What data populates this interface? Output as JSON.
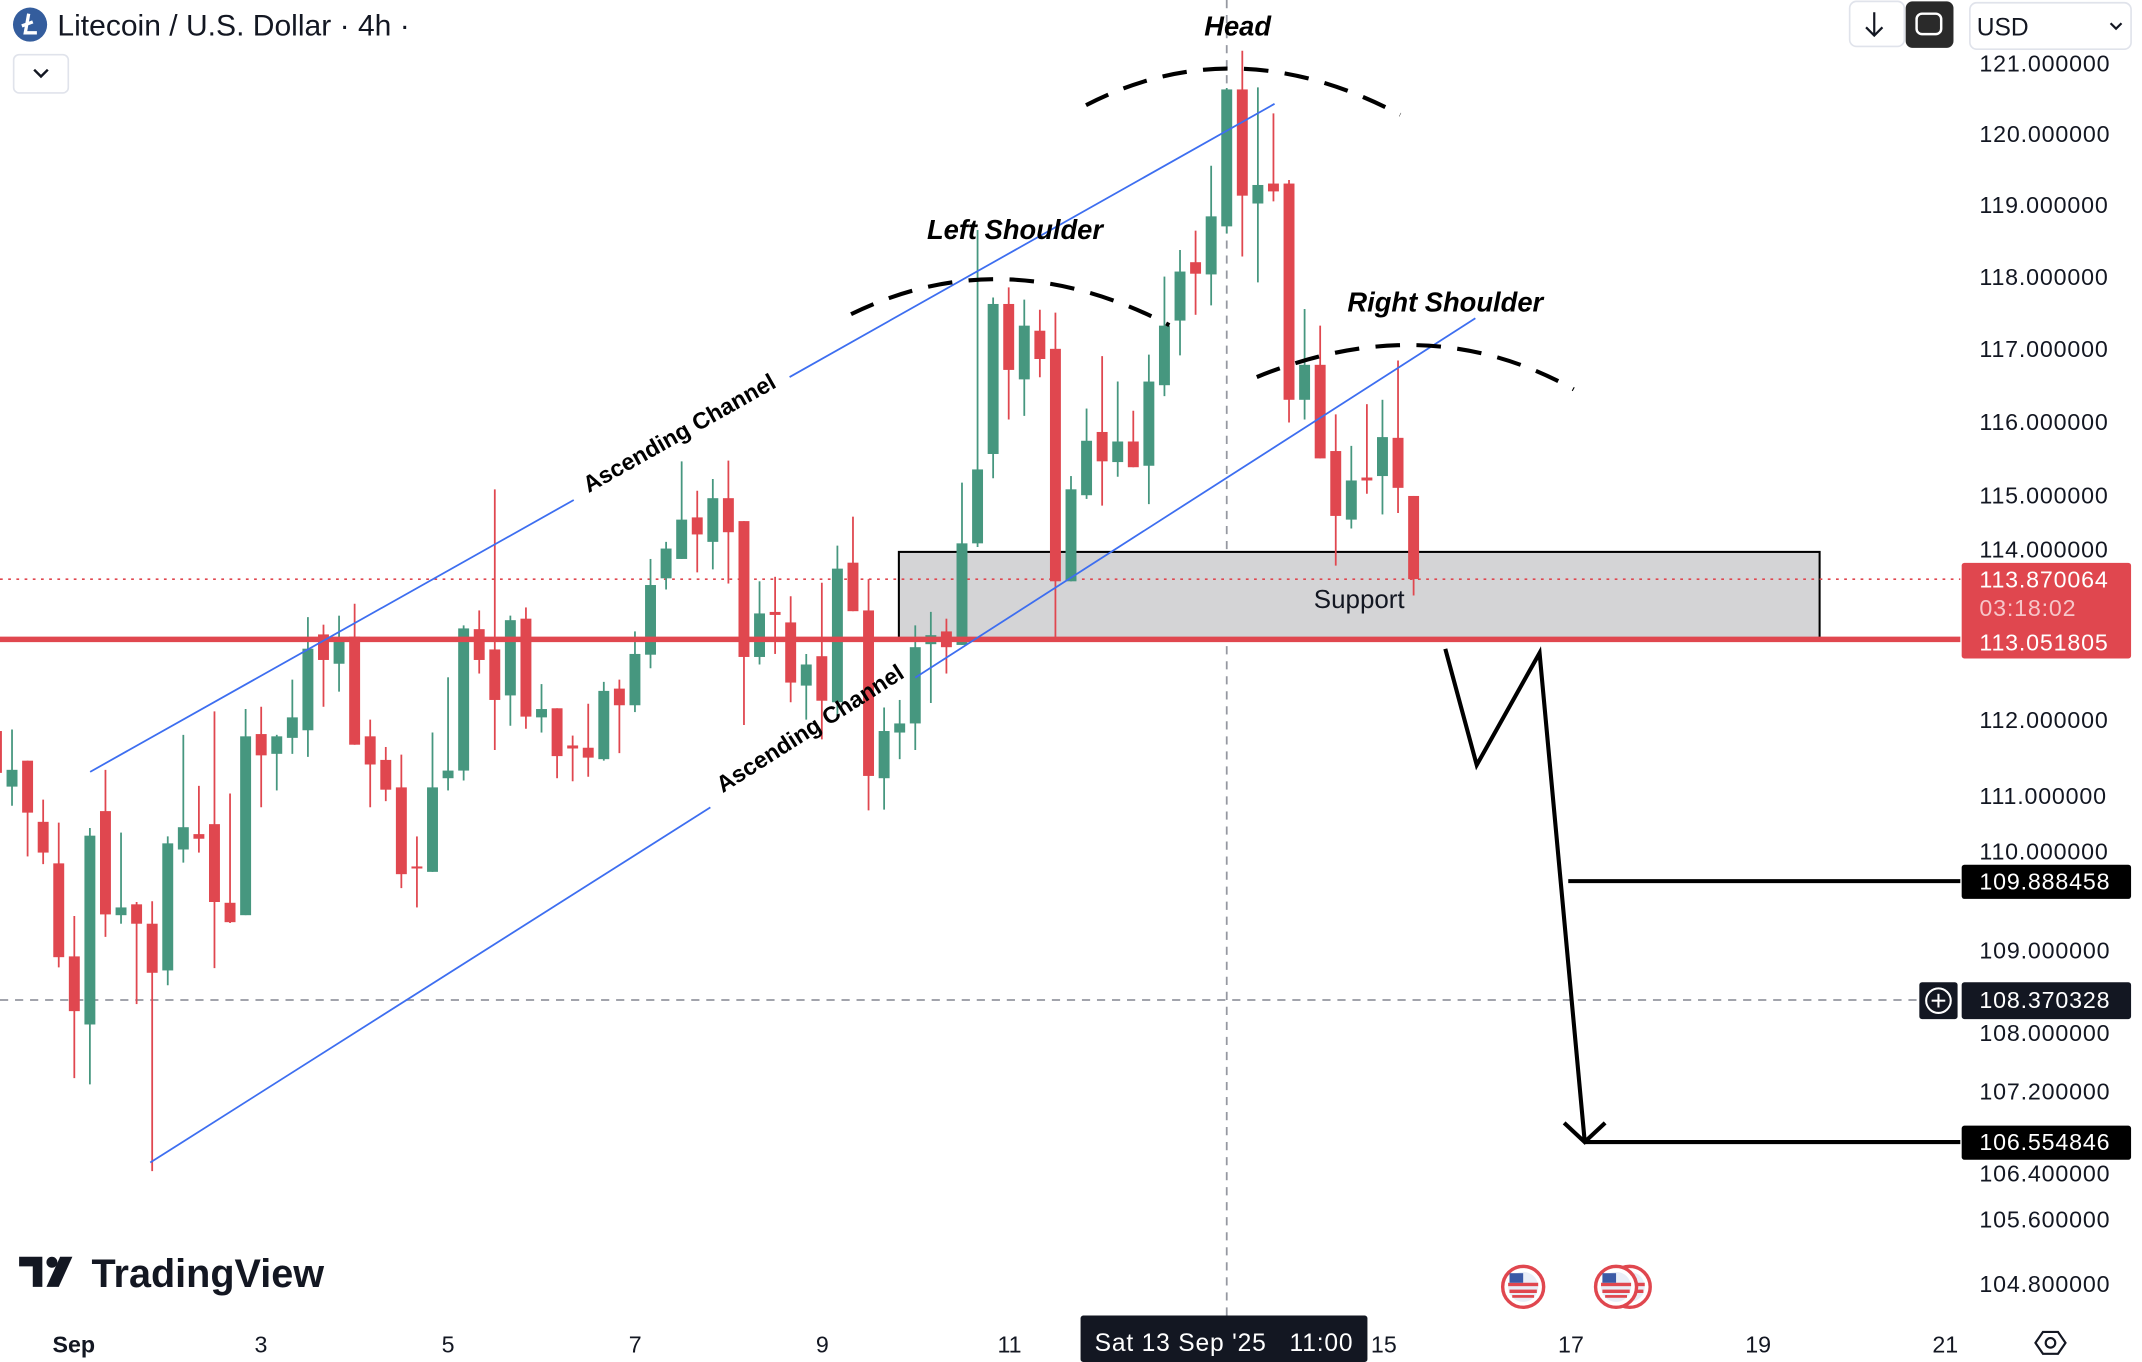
{
  "header": {
    "title": "Litecoin / U.S. Dollar · 4h ·",
    "coin_icon": "litecoin-logo-icon",
    "collapse_icon": "chevron-down-icon",
    "scroll_button_icon": "arrow-down-icon",
    "fullscreen_button_icon": "fullscreen-icon",
    "currency": "USD"
  },
  "colors": {
    "up": "#46977f",
    "down": "#e0474f",
    "channel": "#3d6ef0",
    "support_fill": "#d4d4d6",
    "price_line": "#e0474f",
    "coin": "#345d9d"
  },
  "annotations": {
    "head": "Head",
    "left_shoulder": "Left Shoulder",
    "right_shoulder": "Right Shoulder",
    "channel_upper": "Ascending Channel",
    "channel_lower": "Ascending Channel",
    "support": "Support"
  },
  "price_axis": {
    "scale": "log",
    "ticks": [
      "121.000000",
      "120.000000",
      "119.000000",
      "118.000000",
      "117.000000",
      "116.000000",
      "115.000000",
      "114.000000",
      "112.000000",
      "111.000000",
      "110.000000",
      "109.000000",
      "108.000000",
      "107.200000",
      "106.400000",
      "105.600000",
      "104.800000"
    ],
    "current_price": "113.870064",
    "countdown": "03:18:02",
    "support_level": "113.051805",
    "target_1": "109.888458",
    "crosshair_price": "108.370328",
    "target_2": "106.554846",
    "add_icon": "plus-circle-icon"
  },
  "time_axis": {
    "ticks": [
      "Sep",
      "3",
      "5",
      "7",
      "9",
      "11",
      "15",
      "17",
      "19",
      "21"
    ],
    "crosshair_label": "Sat 13 Sep '25   11:00",
    "settings_icon": "settings-hex-icon"
  },
  "branding": {
    "logo": "TradingView"
  },
  "events": {
    "icons": [
      "us-flag-icon",
      "us-flag-icon",
      "us-flag-icon"
    ]
  },
  "chart_data": {
    "type": "candlestick",
    "interval": "4h",
    "symbol": "Litecoin / U.S. Dollar",
    "ohlc_format": [
      "open",
      "high",
      "low",
      "close"
    ],
    "candles": [
      [
        111.85,
        111.9,
        111.1,
        111.3
      ],
      [
        111.12,
        111.87,
        110.87,
        111.34
      ],
      [
        111.46,
        111.46,
        110.21,
        110.78
      ],
      [
        110.66,
        110.95,
        110.11,
        110.26
      ],
      [
        110.12,
        110.65,
        108.78,
        108.91
      ],
      [
        108.92,
        109.44,
        107.37,
        108.22
      ],
      [
        108.05,
        110.58,
        107.29,
        110.48
      ],
      [
        110.8,
        111.34,
        109.17,
        109.46
      ],
      [
        109.45,
        110.52,
        109.34,
        109.55
      ],
      [
        109.59,
        109.62,
        108.31,
        109.34
      ],
      [
        109.34,
        109.63,
        106.2,
        108.71
      ],
      [
        108.74,
        110.47,
        108.55,
        110.38
      ],
      [
        110.3,
        111.8,
        110.13,
        110.59
      ],
      [
        110.5,
        111.13,
        110.26,
        110.44
      ],
      [
        110.63,
        112.11,
        108.77,
        109.62
      ],
      [
        109.61,
        111.03,
        109.35,
        109.36
      ],
      [
        109.45,
        112.14,
        109.45,
        111.78
      ],
      [
        111.81,
        112.17,
        110.85,
        111.53
      ],
      [
        111.55,
        111.8,
        111.07,
        111.78
      ],
      [
        111.76,
        112.53,
        111.55,
        112.03
      ],
      [
        111.86,
        113.36,
        111.51,
        112.94
      ],
      [
        113.13,
        113.26,
        112.17,
        112.79
      ],
      [
        112.74,
        113.38,
        112.37,
        113.07
      ],
      [
        113.1,
        113.54,
        111.67,
        111.67
      ],
      [
        111.78,
        112.0,
        110.85,
        111.41
      ],
      [
        111.47,
        111.64,
        110.93,
        111.08
      ],
      [
        111.11,
        111.54,
        109.8,
        109.98
      ],
      [
        110.08,
        110.47,
        109.55,
        110.06
      ],
      [
        110.01,
        111.83,
        110.01,
        111.11
      ],
      [
        111.23,
        112.56,
        111.07,
        111.33
      ],
      [
        111.33,
        113.25,
        111.2,
        113.21
      ],
      [
        113.2,
        113.45,
        112.61,
        112.79
      ],
      [
        112.93,
        115.08,
        111.6,
        112.26
      ],
      [
        112.32,
        113.38,
        111.92,
        113.32
      ],
      [
        113.34,
        113.49,
        111.88,
        112.04
      ],
      [
        112.03,
        112.47,
        111.83,
        112.14
      ],
      [
        112.15,
        112.15,
        111.23,
        111.52
      ],
      [
        111.66,
        111.79,
        111.19,
        111.62
      ],
      [
        111.63,
        112.21,
        111.25,
        111.5
      ],
      [
        111.48,
        112.5,
        111.46,
        112.38
      ],
      [
        112.41,
        112.53,
        111.56,
        112.19
      ],
      [
        112.19,
        113.17,
        112.1,
        112.87
      ],
      [
        112.86,
        114.14,
        112.68,
        113.79
      ],
      [
        113.88,
        114.37,
        113.73,
        114.28
      ],
      [
        114.14,
        115.46,
        114.14,
        114.67
      ],
      [
        114.7,
        115.06,
        113.96,
        114.47
      ],
      [
        114.37,
        115.22,
        114.0,
        114.96
      ],
      [
        114.96,
        115.47,
        113.81,
        114.5
      ],
      [
        114.65,
        114.65,
        111.93,
        112.83
      ],
      [
        112.83,
        113.84,
        112.73,
        113.41
      ],
      [
        113.43,
        113.9,
        112.87,
        113.39
      ],
      [
        113.29,
        113.64,
        112.23,
        112.49
      ],
      [
        112.45,
        112.87,
        112.0,
        112.73
      ],
      [
        112.84,
        113.82,
        111.74,
        112.25
      ],
      [
        112.23,
        114.32,
        112.03,
        114.01
      ],
      [
        114.09,
        114.71,
        113.44,
        113.44
      ],
      [
        113.45,
        113.87,
        110.81,
        111.26
      ],
      [
        111.23,
        112.16,
        110.82,
        111.85
      ],
      [
        111.83,
        112.26,
        111.48,
        111.95
      ],
      [
        111.95,
        113.25,
        111.6,
        112.96
      ],
      [
        113.0,
        113.43,
        112.22,
        113.12
      ],
      [
        113.17,
        113.34,
        112.61,
        112.96
      ],
      [
        112.99,
        115.17,
        112.99,
        114.35
      ],
      [
        114.35,
        118.65,
        114.3,
        115.35
      ],
      [
        115.56,
        117.71,
        115.23,
        117.62
      ],
      [
        117.62,
        117.85,
        116.03,
        116.71
      ],
      [
        116.58,
        117.68,
        116.08,
        117.32
      ],
      [
        117.25,
        117.54,
        116.61,
        116.86
      ],
      [
        117.0,
        117.5,
        113.06,
        113.84
      ],
      [
        113.84,
        115.26,
        113.84,
        115.08
      ],
      [
        115.0,
        116.18,
        114.95,
        115.74
      ],
      [
        115.86,
        116.9,
        114.86,
        115.46
      ],
      [
        115.45,
        116.55,
        115.25,
        115.73
      ],
      [
        115.73,
        116.15,
        115.38,
        115.38
      ],
      [
        115.4,
        116.92,
        114.88,
        116.55
      ],
      [
        116.5,
        118.0,
        116.35,
        117.32
      ],
      [
        117.39,
        118.37,
        116.91,
        118.07
      ],
      [
        118.2,
        118.64,
        117.47,
        118.04
      ],
      [
        118.03,
        119.55,
        117.6,
        118.84
      ],
      [
        118.7,
        120.65,
        118.6,
        120.63
      ],
      [
        120.63,
        121.18,
        118.28,
        119.13
      ],
      [
        119.02,
        120.66,
        117.92,
        119.28
      ],
      [
        119.3,
        120.29,
        119.05,
        119.19
      ],
      [
        119.3,
        119.35,
        115.99,
        116.3
      ],
      [
        116.3,
        117.55,
        116.03,
        116.78
      ],
      [
        116.78,
        117.32,
        115.5,
        115.5
      ],
      [
        115.6,
        116.1,
        114.05,
        114.72
      ],
      [
        114.67,
        115.67,
        114.55,
        115.2
      ],
      [
        115.24,
        116.24,
        115.02,
        115.2
      ],
      [
        115.26,
        116.3,
        114.74,
        115.79
      ],
      [
        115.78,
        116.84,
        114.76,
        115.1
      ],
      [
        114.99,
        114.99,
        113.65,
        113.87
      ]
    ],
    "horizontal_levels": {
      "support": 113.051805,
      "current": 113.870064,
      "target_1": 109.888458,
      "target_2": 106.554846,
      "crosshair": 108.370328
    },
    "support_zone": [
      113.051805,
      114.2
    ]
  }
}
